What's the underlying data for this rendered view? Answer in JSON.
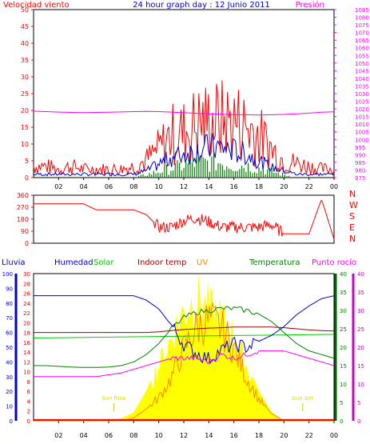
{
  "header": {
    "left_label": "Velocidad viento",
    "title": "24 hour graph day : 12 Junio 2011",
    "right_label": "Presión"
  },
  "colors": {
    "red": "#ff0000",
    "blue": "#0000cc",
    "green": "#008000",
    "lime": "#00cc00",
    "magenta": "#ff00ff",
    "purple": "#cc00cc",
    "maroon": "#990000",
    "orange": "#ff8800",
    "yellow": "#ffff00",
    "dkgreen": "#006600"
  },
  "chart_data": [
    {
      "type": "line",
      "name": "wind-pressure",
      "x_ticks": [
        "02",
        "04",
        "06",
        "08",
        "10",
        "12",
        "14",
        "16",
        "18",
        "20",
        "22",
        "00"
      ],
      "left_axis": {
        "label": "Velocidad viento",
        "range": [
          0,
          50
        ],
        "ticks": [
          0,
          5,
          10,
          15,
          20,
          25,
          30,
          35,
          40,
          45,
          50
        ]
      },
      "right_axis": {
        "label": "Presión",
        "range": [
          975,
          1085
        ],
        "ticks": [
          975,
          980,
          985,
          990,
          995,
          1000,
          1005,
          1010,
          1015,
          1020,
          1025,
          1030,
          1035,
          1040,
          1045,
          1050,
          1055,
          1060,
          1065,
          1070,
          1075,
          1080,
          1085
        ]
      },
      "gust_hourly": [
        4,
        4,
        3,
        4,
        3,
        3,
        3,
        3,
        4,
        6,
        10,
        15,
        16,
        19,
        20,
        20,
        20,
        18,
        15,
        10,
        6,
        5,
        4,
        3
      ],
      "wind_hourly": [
        1,
        1,
        1,
        1,
        1,
        1,
        1,
        1,
        1,
        2,
        4,
        6,
        7,
        8,
        9,
        9,
        8,
        7,
        5,
        3,
        2,
        1,
        1,
        1
      ],
      "speed_hourly": [
        0,
        0,
        0,
        0,
        0,
        0,
        0,
        0,
        0,
        1,
        2,
        3,
        4,
        5,
        5,
        5,
        4,
        4,
        3,
        2,
        1,
        0,
        0,
        0
      ],
      "pressure_hourly": [
        1018.5,
        1018.2,
        1017.9,
        1017.7,
        1017.6,
        1017.7,
        1017.8,
        1018.0,
        1018.2,
        1018.3,
        1018.2,
        1017.9,
        1017.5,
        1017.1,
        1016.7,
        1016.5,
        1016.3,
        1016.1,
        1016.0,
        1016.1,
        1016.4,
        1016.8,
        1017.2,
        1017.8,
        1018.1
      ]
    },
    {
      "type": "line",
      "name": "wind-direction",
      "left_axis": {
        "range": [
          0,
          360
        ],
        "ticks": [
          0,
          90,
          180,
          270,
          360
        ]
      },
      "right_labels": [
        "N",
        "W",
        "S",
        "E",
        "N"
      ],
      "direction_hourly": [
        295,
        295,
        295,
        295,
        295,
        250,
        250,
        250,
        250,
        215,
        120,
        120,
        170,
        190,
        160,
        120,
        120,
        120,
        120,
        140,
        70,
        70,
        70,
        330,
        30
      ]
    },
    {
      "type": "line",
      "name": "weather-multi",
      "x_ticks": [
        "02",
        "04",
        "06",
        "08",
        "10",
        "12",
        "14",
        "16",
        "18",
        "20",
        "22",
        "00"
      ],
      "legend": [
        "Lluvia",
        "Humedad",
        "Solar",
        "Indoor temp",
        "UV",
        "Temperatura",
        "Punto rocío"
      ],
      "rain_axis": {
        "range": [
          0,
          100
        ],
        "ticks": [
          0,
          10,
          20,
          30,
          40,
          50,
          60,
          70,
          80,
          90,
          100
        ]
      },
      "humidity_axis": {
        "range": [
          0,
          30
        ],
        "ticks": [
          0,
          2,
          4,
          6,
          8,
          10,
          12,
          14,
          16,
          18,
          20,
          22,
          24,
          26,
          28,
          30
        ]
      },
      "temp_axis": {
        "range": [
          0,
          40
        ],
        "ticks": [
          0,
          5,
          10,
          15,
          20,
          25,
          30,
          35,
          40
        ]
      },
      "dew_axis": {
        "range": [
          0,
          40
        ],
        "ticks": [
          0,
          5,
          10,
          15,
          20,
          25,
          30,
          35,
          40
        ]
      },
      "annotations": [
        "Sun Rise",
        "Sun Set"
      ],
      "humidity_hourly": [
        85,
        85,
        85,
        85,
        85,
        85,
        85,
        85,
        85,
        82,
        76,
        65,
        52,
        46,
        42,
        48,
        52,
        50,
        54,
        58,
        64,
        72,
        78,
        83,
        85
      ],
      "solar_hourly": [
        0,
        0,
        0,
        0,
        0,
        0,
        0,
        10,
        40,
        140,
        280,
        420,
        560,
        620,
        560,
        520,
        420,
        280,
        140,
        40,
        0,
        0,
        0,
        0,
        0
      ],
      "uv_hourly": [
        0,
        0,
        0,
        0,
        0,
        0,
        0,
        0,
        0.2,
        0.8,
        1.6,
        3.0,
        5.0,
        6.5,
        7.0,
        6.5,
        5.0,
        3.0,
        1.5,
        0.5,
        0,
        0,
        0,
        0,
        0
      ],
      "indoor_temp_hourly": [
        24,
        24,
        24,
        24,
        24,
        24,
        24,
        24,
        24,
        24,
        24.2,
        24.5,
        24.8,
        25,
        25.2,
        25.3,
        25.5,
        25.5,
        25.5,
        25.5,
        25.3,
        25,
        24.7,
        24.5,
        24.4
      ],
      "temperature_hourly": [
        15,
        15,
        14.8,
        14.6,
        14.5,
        14.5,
        14.6,
        15,
        16,
        18,
        21,
        25,
        28,
        29.5,
        30,
        30.5,
        30.5,
        30,
        29,
        27,
        24,
        21,
        19,
        18,
        17
      ],
      "dew_point_hourly": [
        12,
        12,
        12,
        12,
        12,
        12,
        12.5,
        13,
        14,
        15,
        16,
        17,
        17,
        17,
        16,
        18,
        17,
        18,
        19,
        19,
        19,
        18,
        17,
        16,
        15
      ],
      "rain_hourly": [
        0,
        0,
        0,
        0,
        0,
        0,
        0,
        0,
        0,
        0,
        0,
        0,
        0,
        0,
        0,
        0,
        0,
        0,
        0,
        0,
        0,
        0,
        0,
        0,
        0
      ]
    }
  ]
}
